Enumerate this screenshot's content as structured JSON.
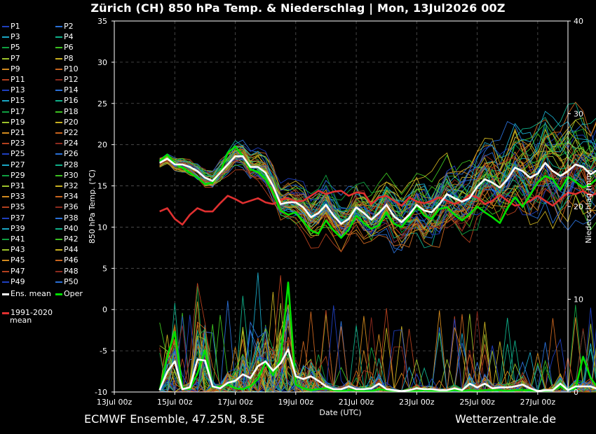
{
  "header": {
    "title": "Zürich  (CH)  850 hPa Temp. & Niederschlag | Mon, 13Jul2026 00Z"
  },
  "footer": {
    "model": "ECMWF Ensemble, 47.25N, 8.5E",
    "source": "Wetterzentrale.de"
  },
  "legend": {
    "members": [
      "P1",
      "P2",
      "P3",
      "P4",
      "P5",
      "P6",
      "P7",
      "P8",
      "P9",
      "P10",
      "P11",
      "P12",
      "P13",
      "P14",
      "P15",
      "P16",
      "P17",
      "P18",
      "P19",
      "P20",
      "P21",
      "P22",
      "P23",
      "P24",
      "P25",
      "P26",
      "P27",
      "P28",
      "P29",
      "P30",
      "P31",
      "P32",
      "P33",
      "P34",
      "P35",
      "P36",
      "P37",
      "P38",
      "P39",
      "P40",
      "P41",
      "P42",
      "P43",
      "P44",
      "P45",
      "P46",
      "P47",
      "P48",
      "P49",
      "P50"
    ],
    "ens_mean": "Ens. mean",
    "oper": "Oper",
    "clim_line1": "1991-2020",
    "clim_line2": "mean"
  },
  "colors": {
    "background": "#000000",
    "ens_mean": "#ffffff",
    "oper": "#00e000",
    "clim": "#e03030",
    "member_palette": [
      "#1f3fbf",
      "#2a6fd6",
      "#1aa6c4",
      "#0fb08a",
      "#0fa040",
      "#3cc020",
      "#9cc22a",
      "#c8b020",
      "#d28a1e",
      "#c8641e",
      "#b4401e",
      "#8c2a1e"
    ]
  },
  "chart_data": {
    "type": "line",
    "x_unit": "date (UTC), 6-hourly",
    "x_start": "13Jul 00z",
    "xlabel": "Date (UTC)",
    "ylabel": "850 hPa Temp. (°C)",
    "y2label": "Niederschlag (mm)",
    "ylim": [
      -10,
      35
    ],
    "y2lim": [
      0,
      40
    ],
    "yticks": [
      35,
      30,
      25,
      20,
      15,
      10,
      5,
      0,
      -5,
      -10
    ],
    "y2ticks": [
      40,
      30,
      20,
      10,
      0
    ],
    "x_tick_labels": [
      "13Jul 00z",
      "15Jul 00z",
      "17Jul 00z",
      "19Jul 00z",
      "21Jul 00z",
      "23Jul 00z",
      "25Jul 00z",
      "27Jul 00z"
    ],
    "x_tick_days": [
      0,
      2,
      4,
      6,
      8,
      10,
      12,
      14
    ],
    "x_range_days": [
      0,
      15
    ],
    "grid": true,
    "series_start_day": 1.5,
    "step_days": 0.25,
    "ens_mean_temp": [
      17.8,
      18.3,
      17.6,
      17.6,
      17.3,
      16.8,
      16.0,
      15.6,
      16.6,
      17.6,
      18.6,
      18.6,
      17.3,
      17.3,
      16.6,
      15.0,
      12.8,
      13.0,
      13.0,
      12.4,
      11.2,
      11.7,
      12.7,
      11.4,
      10.4,
      11.0,
      12.4,
      11.7,
      10.9,
      11.7,
      12.7,
      11.3,
      10.6,
      11.5,
      12.7,
      12.0,
      11.8,
      12.8,
      14.0,
      13.5,
      13.1,
      13.5,
      14.9,
      15.8,
      15.4,
      14.8,
      15.8,
      17.2,
      16.8,
      16.0,
      16.5,
      17.8,
      16.8,
      16.2,
      16.8,
      17.6,
      17.3,
      16.4,
      17.0,
      18.3,
      17.8
    ],
    "oper_temp": [
      18.0,
      18.8,
      17.7,
      17.2,
      16.6,
      16.0,
      15.2,
      15.4,
      16.6,
      19.0,
      19.8,
      18.6,
      17.0,
      16.7,
      15.8,
      14.2,
      12.0,
      11.5,
      11.8,
      10.7,
      9.6,
      9.2,
      10.8,
      9.6,
      8.7,
      9.7,
      11.4,
      10.5,
      9.8,
      10.2,
      11.8,
      10.4,
      10.0,
      11.2,
      12.6,
      11.4,
      11.0,
      12.2,
      12.4,
      11.5,
      10.8,
      11.6,
      12.5,
      11.8,
      11.2,
      10.5,
      12.3,
      13.6,
      12.5,
      13.9,
      15.4,
      16.2,
      15.8,
      14.5,
      16.1,
      15.5,
      14.8,
      15.2,
      16.0,
      15.2,
      15.0
    ],
    "clim_mean_temp": [
      11.9,
      12.3,
      11.0,
      10.3,
      11.5,
      12.3,
      11.9,
      11.9,
      12.9,
      13.8,
      13.4,
      12.9,
      13.2,
      13.5,
      13.0,
      12.8,
      13.3,
      13.5,
      13.1,
      13.2,
      13.8,
      14.4,
      14.0,
      14.3,
      14.4,
      13.8,
      14.2,
      14.1,
      12.8,
      13.6,
      13.8,
      13.2,
      12.6,
      13.6,
      13.1,
      12.9,
      13.2,
      13.6,
      13.2,
      12.8,
      13.2,
      13.9,
      13.6,
      12.8,
      13.2,
      13.9,
      13.2,
      12.6,
      12.8,
      13.2,
      13.8,
      13.2,
      12.6,
      13.4,
      14.2,
      14.0,
      14.4,
      13.8,
      14.2,
      14.4,
      14.0
    ],
    "ens_mean_precip": [
      0.2,
      2.2,
      3.3,
      0.3,
      0.5,
      3.5,
      3.4,
      0.6,
      0.4,
      1.0,
      1.2,
      1.9,
      1.5,
      2.8,
      3.3,
      2.3,
      3.1,
      4.6,
      1.7,
      1.4,
      1.7,
      1.2,
      0.6,
      0.3,
      0.3,
      0.6,
      0.3,
      0.3,
      0.4,
      0.9,
      0.3,
      0.2,
      0.1,
      0.2,
      0.4,
      0.3,
      0.3,
      0.2,
      0.2,
      0.4,
      0.2,
      0.9,
      0.5,
      0.9,
      0.4,
      0.5,
      0.5,
      0.6,
      0.8,
      0.4,
      0.1,
      0.2,
      0.2,
      0.9,
      0.2,
      0.6,
      0.6,
      0.6,
      0.3,
      0.2,
      0.2
    ],
    "oper_precip": [
      0.2,
      3.8,
      6.5,
      0.5,
      0.3,
      2.0,
      4.5,
      0.5,
      0.6,
      0.8,
      0.4,
      0.3,
      0.6,
      1.4,
      3.2,
      1.8,
      3.6,
      11.8,
      0.8,
      0.4,
      0.2,
      0.3,
      0.4,
      0.2,
      0.1,
      0.2,
      0.2,
      0.1,
      0.1,
      0.3,
      0.2,
      0.1,
      0.1,
      0.1,
      0.1,
      0.2,
      0.1,
      0.1,
      0.1,
      0.2,
      0.1,
      0.2,
      0.1,
      0.2,
      0.2,
      0.2,
      0.1,
      0.2,
      0.2,
      0.2,
      0.1,
      0.1,
      0.2,
      0.6,
      0.2,
      0.4,
      3.8,
      1.5,
      0.4,
      0.2,
      0.2
    ]
  }
}
